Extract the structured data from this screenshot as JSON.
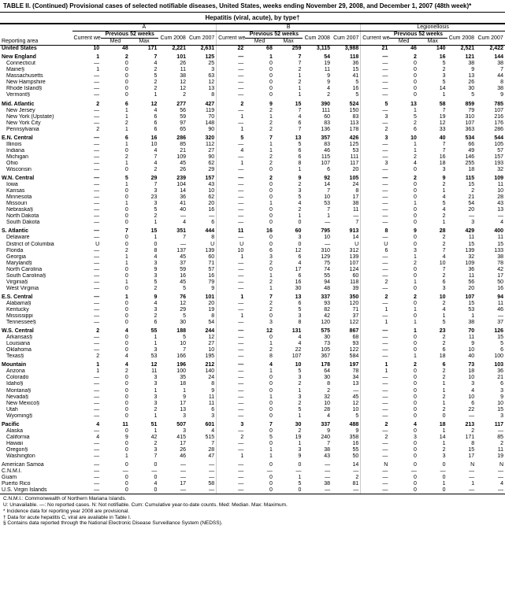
{
  "title": "TABLE II. (Continued) Provisional cases of selected notifiable diseases, United States, weeks ending November 29, 2008, and December 1, 2007 (48th week)*",
  "subtitle": "Hepatitis (viral, acute), by type†",
  "group_headers": [
    "A",
    "B",
    "Legionellosis"
  ],
  "sub_headers": {
    "area": "Reporting area",
    "current": "Current week",
    "prev": "Previous 52 weeks",
    "med": "Med",
    "max": "Max",
    "cum08": "Cum 2008",
    "cum07": "Cum 2007"
  },
  "rows": [
    {
      "b": 1,
      "area": "United States",
      "a": [
        "10",
        "48",
        "171",
        "2,221",
        "2,631",
        "22",
        "68",
        "259",
        "3,115",
        "3,988",
        "21",
        "46",
        "140",
        "2,521",
        "2,422"
      ]
    },
    {
      "b": 1,
      "s": 1,
      "area": "New England",
      "a": [
        "1",
        "2",
        "7",
        "101",
        "125",
        "—",
        "1",
        "7",
        "54",
        "118",
        "—",
        "2",
        "16",
        "121",
        "144"
      ]
    },
    {
      "i": 1,
      "area": "Connecticut",
      "a": [
        "—",
        "0",
        "4",
        "26",
        "25",
        "—",
        "0",
        "7",
        "19",
        "36",
        "—",
        "0",
        "5",
        "38",
        "38"
      ]
    },
    {
      "i": 1,
      "area": "Maine§",
      "a": [
        "1",
        "0",
        "2",
        "11",
        "3",
        "—",
        "0",
        "2",
        "11",
        "15",
        "—",
        "0",
        "2",
        "9",
        "7"
      ]
    },
    {
      "i": 1,
      "area": "Massachusetts",
      "a": [
        "—",
        "0",
        "5",
        "38",
        "63",
        "—",
        "0",
        "1",
        "9",
        "41",
        "—",
        "0",
        "3",
        "13",
        "44"
      ]
    },
    {
      "i": 1,
      "area": "New Hampshire",
      "a": [
        "—",
        "0",
        "2",
        "12",
        "12",
        "—",
        "0",
        "2",
        "9",
        "5",
        "—",
        "0",
        "5",
        "26",
        "8"
      ]
    },
    {
      "i": 1,
      "area": "Rhode Island§",
      "a": [
        "—",
        "0",
        "2",
        "12",
        "13",
        "—",
        "0",
        "1",
        "4",
        "16",
        "—",
        "0",
        "14",
        "30",
        "38"
      ]
    },
    {
      "i": 1,
      "area": "Vermont§",
      "a": [
        "—",
        "0",
        "1",
        "2",
        "8",
        "—",
        "0",
        "1",
        "2",
        "5",
        "—",
        "0",
        "1",
        "5",
        "9"
      ]
    },
    {
      "b": 1,
      "s": 1,
      "area": "Mid. Atlantic",
      "a": [
        "2",
        "6",
        "12",
        "277",
        "427",
        "2",
        "9",
        "15",
        "390",
        "524",
        "5",
        "13",
        "58",
        "859",
        "785"
      ]
    },
    {
      "i": 1,
      "area": "New Jersey",
      "a": [
        "—",
        "1",
        "4",
        "56",
        "119",
        "—",
        "2",
        "7",
        "111",
        "150",
        "—",
        "1",
        "7",
        "79",
        "107"
      ]
    },
    {
      "i": 1,
      "area": "New York (Upstate)",
      "a": [
        "—",
        "1",
        "6",
        "59",
        "70",
        "1",
        "1",
        "4",
        "60",
        "83",
        "3",
        "5",
        "19",
        "310",
        "216"
      ]
    },
    {
      "i": 1,
      "area": "New York City",
      "a": [
        "—",
        "2",
        "6",
        "97",
        "148",
        "—",
        "2",
        "6",
        "83",
        "113",
        "—",
        "2",
        "12",
        "107",
        "176"
      ]
    },
    {
      "i": 1,
      "area": "Pennsylvania",
      "a": [
        "2",
        "1",
        "6",
        "65",
        "90",
        "1",
        "2",
        "7",
        "136",
        "178",
        "2",
        "6",
        "33",
        "363",
        "286"
      ]
    },
    {
      "b": 1,
      "s": 1,
      "area": "E.N. Central",
      "a": [
        "—",
        "6",
        "16",
        "286",
        "320",
        "5",
        "7",
        "13",
        "357",
        "426",
        "3",
        "10",
        "40",
        "534",
        "544"
      ]
    },
    {
      "i": 1,
      "area": "Illinois",
      "a": [
        "—",
        "1",
        "10",
        "85",
        "112",
        "—",
        "1",
        "5",
        "83",
        "125",
        "—",
        "1",
        "7",
        "66",
        "105"
      ]
    },
    {
      "i": 1,
      "area": "Indiana",
      "a": [
        "—",
        "0",
        "4",
        "21",
        "27",
        "4",
        "1",
        "6",
        "46",
        "53",
        "—",
        "1",
        "7",
        "49",
        "57"
      ]
    },
    {
      "i": 1,
      "area": "Michigan",
      "a": [
        "—",
        "2",
        "7",
        "109",
        "90",
        "—",
        "2",
        "6",
        "115",
        "111",
        "—",
        "2",
        "16",
        "146",
        "157"
      ]
    },
    {
      "i": 1,
      "area": "Ohio",
      "a": [
        "—",
        "1",
        "4",
        "45",
        "62",
        "1",
        "2",
        "8",
        "107",
        "117",
        "3",
        "4",
        "18",
        "255",
        "193"
      ]
    },
    {
      "i": 1,
      "area": "Wisconsin",
      "a": [
        "—",
        "0",
        "2",
        "26",
        "29",
        "—",
        "0",
        "1",
        "6",
        "20",
        "—",
        "0",
        "3",
        "18",
        "32"
      ]
    },
    {
      "b": 1,
      "s": 1,
      "area": "W.N. Central",
      "a": [
        "—",
        "5",
        "29",
        "239",
        "157",
        "—",
        "2",
        "9",
        "92",
        "105",
        "—",
        "2",
        "9",
        "115",
        "109"
      ]
    },
    {
      "i": 1,
      "area": "Iowa",
      "a": [
        "—",
        "1",
        "7",
        "104",
        "43",
        "—",
        "0",
        "2",
        "14",
        "24",
        "—",
        "0",
        "2",
        "15",
        "11"
      ]
    },
    {
      "i": 1,
      "area": "Kansas",
      "a": [
        "—",
        "0",
        "3",
        "14",
        "10",
        "—",
        "0",
        "3",
        "7",
        "8",
        "—",
        "0",
        "1",
        "2",
        "10"
      ]
    },
    {
      "i": 1,
      "area": "Minnesota",
      "a": [
        "—",
        "0",
        "23",
        "36",
        "62",
        "—",
        "0",
        "5",
        "10",
        "17",
        "—",
        "0",
        "4",
        "21",
        "28"
      ]
    },
    {
      "i": 1,
      "area": "Missouri",
      "a": [
        "—",
        "1",
        "3",
        "41",
        "20",
        "—",
        "1",
        "4",
        "53",
        "38",
        "—",
        "1",
        "5",
        "54",
        "43"
      ]
    },
    {
      "i": 1,
      "area": "Nebraska§",
      "a": [
        "—",
        "0",
        "5",
        "40",
        "16",
        "—",
        "0",
        "2",
        "7",
        "11",
        "—",
        "0",
        "4",
        "20",
        "13"
      ]
    },
    {
      "i": 1,
      "area": "North Dakota",
      "a": [
        "—",
        "0",
        "2",
        "—",
        "—",
        "—",
        "0",
        "1",
        "1",
        "—",
        "—",
        "0",
        "2",
        "—",
        "—"
      ]
    },
    {
      "i": 1,
      "area": "South Dakota",
      "a": [
        "—",
        "0",
        "1",
        "4",
        "6",
        "—",
        "0",
        "0",
        "—",
        "7",
        "—",
        "0",
        "1",
        "3",
        "4"
      ]
    },
    {
      "b": 1,
      "s": 1,
      "area": "S. Atlantic",
      "a": [
        "—",
        "7",
        "15",
        "351",
        "444",
        "11",
        "16",
        "60",
        "795",
        "913",
        "8",
        "9",
        "28",
        "429",
        "400"
      ]
    },
    {
      "i": 1,
      "area": "Delaware",
      "a": [
        "—",
        "0",
        "1",
        "7",
        "8",
        "—",
        "0",
        "3",
        "10",
        "14",
        "—",
        "0",
        "2",
        "11",
        "11"
      ]
    },
    {
      "i": 1,
      "area": "District of Columbia",
      "a": [
        "U",
        "0",
        "0",
        "—",
        "U",
        "U",
        "0",
        "0",
        "—",
        "U",
        "U",
        "0",
        "2",
        "15",
        "15"
      ]
    },
    {
      "i": 1,
      "area": "Florida",
      "a": [
        "—",
        "2",
        "8",
        "137",
        "139",
        "10",
        "6",
        "12",
        "310",
        "312",
        "6",
        "3",
        "7",
        "139",
        "133"
      ]
    },
    {
      "i": 1,
      "area": "Georgia",
      "a": [
        "—",
        "1",
        "4",
        "45",
        "60",
        "1",
        "3",
        "6",
        "129",
        "139",
        "—",
        "1",
        "4",
        "32",
        "38"
      ]
    },
    {
      "i": 1,
      "area": "Maryland§",
      "a": [
        "—",
        "1",
        "3",
        "37",
        "71",
        "—",
        "2",
        "4",
        "75",
        "107",
        "—",
        "2",
        "10",
        "109",
        "78"
      ]
    },
    {
      "i": 1,
      "area": "North Carolina",
      "a": [
        "—",
        "0",
        "9",
        "59",
        "57",
        "—",
        "0",
        "17",
        "74",
        "124",
        "—",
        "0",
        "7",
        "36",
        "42"
      ]
    },
    {
      "i": 1,
      "area": "South Carolina§",
      "a": [
        "—",
        "0",
        "3",
        "16",
        "16",
        "—",
        "1",
        "6",
        "55",
        "60",
        "—",
        "0",
        "2",
        "11",
        "17"
      ]
    },
    {
      "i": 1,
      "area": "Virginia§",
      "a": [
        "—",
        "1",
        "5",
        "45",
        "79",
        "—",
        "2",
        "16",
        "94",
        "118",
        "2",
        "1",
        "6",
        "56",
        "50"
      ]
    },
    {
      "i": 1,
      "area": "West Virginia",
      "a": [
        "—",
        "0",
        "2",
        "5",
        "9",
        "—",
        "1",
        "30",
        "48",
        "39",
        "—",
        "0",
        "3",
        "20",
        "16"
      ]
    },
    {
      "b": 1,
      "s": 1,
      "area": "E.S. Central",
      "a": [
        "—",
        "1",
        "9",
        "76",
        "101",
        "1",
        "7",
        "13",
        "337",
        "350",
        "2",
        "2",
        "10",
        "107",
        "94"
      ]
    },
    {
      "i": 1,
      "area": "Alabama§",
      "a": [
        "—",
        "0",
        "4",
        "12",
        "20",
        "—",
        "2",
        "6",
        "93",
        "120",
        "—",
        "0",
        "2",
        "15",
        "11"
      ]
    },
    {
      "i": 1,
      "area": "Kentucky",
      "a": [
        "—",
        "0",
        "3",
        "29",
        "19",
        "—",
        "2",
        "5",
        "82",
        "71",
        "1",
        "1",
        "4",
        "53",
        "46"
      ]
    },
    {
      "i": 1,
      "area": "Mississippi",
      "a": [
        "—",
        "0",
        "2",
        "5",
        "8",
        "1",
        "0",
        "3",
        "42",
        "37",
        "—",
        "0",
        "1",
        "1",
        "—"
      ]
    },
    {
      "i": 1,
      "area": "Tennessee§",
      "a": [
        "—",
        "0",
        "6",
        "30",
        "54",
        "—",
        "3",
        "8",
        "120",
        "122",
        "1",
        "1",
        "5",
        "38",
        "37"
      ]
    },
    {
      "b": 1,
      "s": 1,
      "area": "W.S. Central",
      "a": [
        "2",
        "4",
        "55",
        "188",
        "244",
        "—",
        "12",
        "131",
        "575",
        "867",
        "—",
        "1",
        "23",
        "70",
        "126"
      ]
    },
    {
      "i": 1,
      "area": "Arkansas§",
      "a": [
        "—",
        "0",
        "1",
        "5",
        "12",
        "—",
        "0",
        "4",
        "30",
        "68",
        "—",
        "0",
        "2",
        "11",
        "15"
      ]
    },
    {
      "i": 1,
      "area": "Louisiana",
      "a": [
        "—",
        "0",
        "1",
        "10",
        "27",
        "—",
        "1",
        "4",
        "73",
        "93",
        "—",
        "0",
        "2",
        "9",
        "5"
      ]
    },
    {
      "i": 1,
      "area": "Oklahoma",
      "a": [
        "—",
        "0",
        "3",
        "7",
        "10",
        "—",
        "2",
        "22",
        "105",
        "122",
        "—",
        "0",
        "6",
        "10",
        "6"
      ]
    },
    {
      "i": 1,
      "area": "Texas§",
      "a": [
        "2",
        "4",
        "53",
        "166",
        "195",
        "—",
        "8",
        "107",
        "367",
        "584",
        "—",
        "1",
        "18",
        "40",
        "100"
      ]
    },
    {
      "b": 1,
      "s": 1,
      "area": "Mountain",
      "a": [
        "1",
        "4",
        "12",
        "196",
        "212",
        "—",
        "4",
        "10",
        "178",
        "197",
        "1",
        "2",
        "6",
        "73",
        "103"
      ]
    },
    {
      "i": 1,
      "area": "Arizona",
      "a": [
        "1",
        "2",
        "11",
        "100",
        "140",
        "—",
        "1",
        "5",
        "64",
        "78",
        "1",
        "0",
        "2",
        "18",
        "36"
      ]
    },
    {
      "i": 1,
      "area": "Colorado",
      "a": [
        "—",
        "0",
        "3",
        "35",
        "24",
        "—",
        "0",
        "3",
        "30",
        "34",
        "—",
        "0",
        "2",
        "10",
        "21"
      ]
    },
    {
      "i": 1,
      "area": "Idaho§",
      "a": [
        "—",
        "0",
        "3",
        "18",
        "8",
        "—",
        "0",
        "2",
        "8",
        "13",
        "—",
        "0",
        "1",
        "3",
        "6"
      ]
    },
    {
      "i": 1,
      "area": "Montana§",
      "a": [
        "—",
        "0",
        "1",
        "1",
        "9",
        "—",
        "0",
        "1",
        "2",
        "—",
        "—",
        "0",
        "1",
        "4",
        "3"
      ]
    },
    {
      "i": 1,
      "area": "Nevada§",
      "a": [
        "—",
        "0",
        "3",
        "9",
        "11",
        "—",
        "1",
        "3",
        "32",
        "45",
        "—",
        "0",
        "2",
        "10",
        "9"
      ]
    },
    {
      "i": 1,
      "area": "New Mexico§",
      "a": [
        "—",
        "0",
        "3",
        "17",
        "11",
        "—",
        "0",
        "2",
        "10",
        "12",
        "—",
        "0",
        "1",
        "6",
        "10"
      ]
    },
    {
      "i": 1,
      "area": "Utah",
      "a": [
        "—",
        "0",
        "2",
        "13",
        "6",
        "—",
        "0",
        "5",
        "28",
        "10",
        "—",
        "0",
        "2",
        "22",
        "15"
      ]
    },
    {
      "i": 1,
      "area": "Wyoming§",
      "a": [
        "—",
        "0",
        "1",
        "3",
        "3",
        "—",
        "0",
        "1",
        "4",
        "5",
        "—",
        "0",
        "0",
        "—",
        "3"
      ]
    },
    {
      "b": 1,
      "s": 1,
      "area": "Pacific",
      "a": [
        "4",
        "11",
        "51",
        "507",
        "601",
        "3",
        "7",
        "30",
        "337",
        "488",
        "2",
        "4",
        "18",
        "213",
        "117"
      ]
    },
    {
      "i": 1,
      "area": "Alaska",
      "a": [
        "—",
        "0",
        "1",
        "3",
        "4",
        "—",
        "0",
        "2",
        "9",
        "9",
        "—",
        "0",
        "1",
        "2",
        "—"
      ]
    },
    {
      "i": 1,
      "area": "California",
      "a": [
        "4",
        "9",
        "42",
        "415",
        "515",
        "2",
        "5",
        "19",
        "240",
        "358",
        "2",
        "3",
        "14",
        "171",
        "85"
      ]
    },
    {
      "i": 1,
      "area": "Hawaii",
      "a": [
        "—",
        "0",
        "2",
        "17",
        "7",
        "—",
        "0",
        "1",
        "7",
        "16",
        "—",
        "0",
        "1",
        "8",
        "2"
      ]
    },
    {
      "i": 1,
      "area": "Oregon§",
      "a": [
        "—",
        "0",
        "3",
        "26",
        "28",
        "—",
        "1",
        "3",
        "38",
        "55",
        "—",
        "0",
        "2",
        "15",
        "11"
      ]
    },
    {
      "i": 1,
      "area": "Washington",
      "a": [
        "—",
        "1",
        "7",
        "46",
        "47",
        "1",
        "1",
        "9",
        "43",
        "50",
        "—",
        "0",
        "3",
        "17",
        "19"
      ]
    },
    {
      "s": 1,
      "area": "American Samoa",
      "a": [
        "—",
        "0",
        "0",
        "—",
        "—",
        "—",
        "0",
        "0",
        "—",
        "14",
        "N",
        "0",
        "0",
        "N",
        "N"
      ]
    },
    {
      "area": "C.N.M.I.",
      "a": [
        "—",
        "—",
        "—",
        "—",
        "—",
        "—",
        "—",
        "—",
        "—",
        "—",
        "—",
        "—",
        "—",
        "—",
        "—"
      ]
    },
    {
      "area": "Guam",
      "a": [
        "—",
        "0",
        "0",
        "—",
        "—",
        "—",
        "0",
        "1",
        "—",
        "2",
        "—",
        "0",
        "0",
        "—",
        "—"
      ]
    },
    {
      "area": "Puerto Rico",
      "a": [
        "—",
        "0",
        "4",
        "17",
        "58",
        "—",
        "0",
        "5",
        "38",
        "81",
        "—",
        "0",
        "1",
        "1",
        "4"
      ]
    },
    {
      "area": "U.S. Virgin Islands",
      "a": [
        "—",
        "0",
        "0",
        "—",
        "—",
        "—",
        "0",
        "0",
        "—",
        "—",
        "—",
        "0",
        "0",
        "—",
        "—"
      ]
    }
  ],
  "footnotes": [
    "C.N.M.I.: Commonwealth of Northern Mariana Islands.",
    "U: Unavailable.    —: No reported cases.    N: Not notifiable.    Cum: Cumulative year-to-date counts.    Med: Median.    Max: Maximum.",
    "* Incidence data for reporting year 2008 are provisional.",
    "† Data for acute hepatitis C, viral are available in Table I.",
    "§ Contains data reported through the National Electronic Disease Surveillance System (NEDSS)."
  ],
  "style": {
    "font_family": "Arial, Helvetica, sans-serif",
    "base_fontsize": 7,
    "title_fontsize": 8,
    "bg": "#ffffff",
    "fg": "#000000",
    "border": "#000000"
  }
}
